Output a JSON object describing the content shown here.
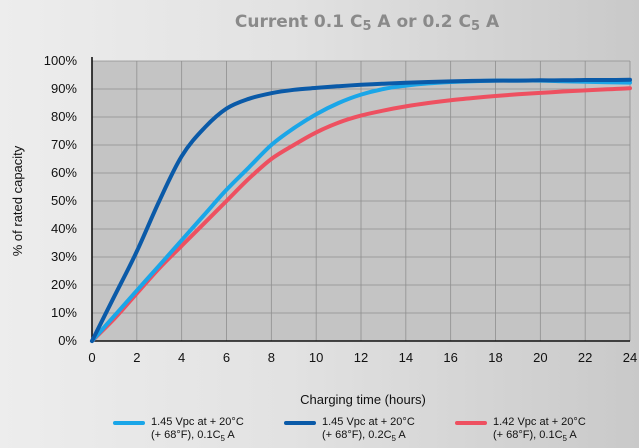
{
  "chart_data": {
    "type": "line",
    "title": "Current 0.1 C",
    "title_parts": [
      "Current 0.1 C",
      "5",
      " A or 0.2 C",
      "5",
      " A"
    ],
    "xlabel": "Charging time (hours)",
    "ylabel": "% of rated capacity",
    "xlim": [
      0,
      24
    ],
    "ylim": [
      0,
      100
    ],
    "x_ticks": [
      "0",
      "2",
      "4",
      "6",
      "8",
      "10",
      "12",
      "14",
      "16",
      "18",
      "20",
      "22",
      "24"
    ],
    "y_ticks": [
      "0%",
      "10%",
      "20%",
      "30%",
      "40%",
      "50%",
      "60%",
      "70%",
      "80%",
      "90%",
      "100%"
    ],
    "grid": true,
    "legend_position": "bottom",
    "series": [
      {
        "name": "1.45 Vpc at + 20°C (+ 68°F), 0.1C5 A",
        "legend_line1": "1.45 Vpc at + 20°C",
        "legend_line2_a": "(+ 68°F), 0.1C",
        "legend_line2_sub": "5",
        "legend_line2_b": " A",
        "color": "#1aa6e8",
        "x": [
          0,
          1,
          2,
          3,
          4,
          5,
          6,
          7,
          8,
          9,
          10,
          11,
          12,
          13,
          14,
          15,
          16,
          17,
          18,
          19,
          20,
          21,
          22,
          23,
          24
        ],
        "y": [
          0,
          9,
          18,
          27,
          36,
          45,
          54,
          62,
          70,
          76,
          81,
          85,
          88,
          90,
          91.2,
          92,
          92.5,
          92.8,
          93,
          93,
          93,
          92.8,
          92.6,
          92.4,
          92.3
        ]
      },
      {
        "name": "1.45 Vpc at + 20°C (+ 68°F), 0.2C5 A",
        "legend_line1": "1.45 Vpc at + 20°C",
        "legend_line2_a": "(+ 68°F), 0.2C",
        "legend_line2_sub": "5",
        "legend_line2_b": " A",
        "color": "#0a5aa8",
        "x": [
          0,
          1,
          2,
          3,
          4,
          5,
          6,
          7,
          8,
          9,
          10,
          11,
          12,
          13,
          14,
          15,
          16,
          17,
          18,
          19,
          20,
          21,
          22,
          23,
          24
        ],
        "y": [
          0,
          16,
          32,
          50,
          66,
          76,
          83,
          86.5,
          88.5,
          89.7,
          90.4,
          91,
          91.5,
          91.9,
          92.2,
          92.5,
          92.7,
          92.9,
          93,
          93,
          93.1,
          93.1,
          93.2,
          93.2,
          93.3
        ]
      },
      {
        "name": "1.42 Vpc at + 20°C (+ 68°F), 0.1C5 A",
        "legend_line1": "1.42 Vpc at + 20°C",
        "legend_line2_a": "(+ 68°F), 0.1C",
        "legend_line2_sub": "5",
        "legend_line2_b": " A",
        "color": "#ee5060",
        "x": [
          0,
          1,
          2,
          3,
          4,
          5,
          6,
          7,
          8,
          9,
          10,
          11,
          12,
          13,
          14,
          15,
          16,
          17,
          18,
          19,
          20,
          21,
          22,
          23,
          24
        ],
        "y": [
          0,
          8,
          17,
          26,
          34,
          42,
          50,
          58,
          65,
          70,
          74.5,
          78,
          80.5,
          82.3,
          83.8,
          85,
          86,
          86.8,
          87.5,
          88.1,
          88.6,
          89.1,
          89.5,
          89.9,
          90.3
        ]
      }
    ]
  }
}
